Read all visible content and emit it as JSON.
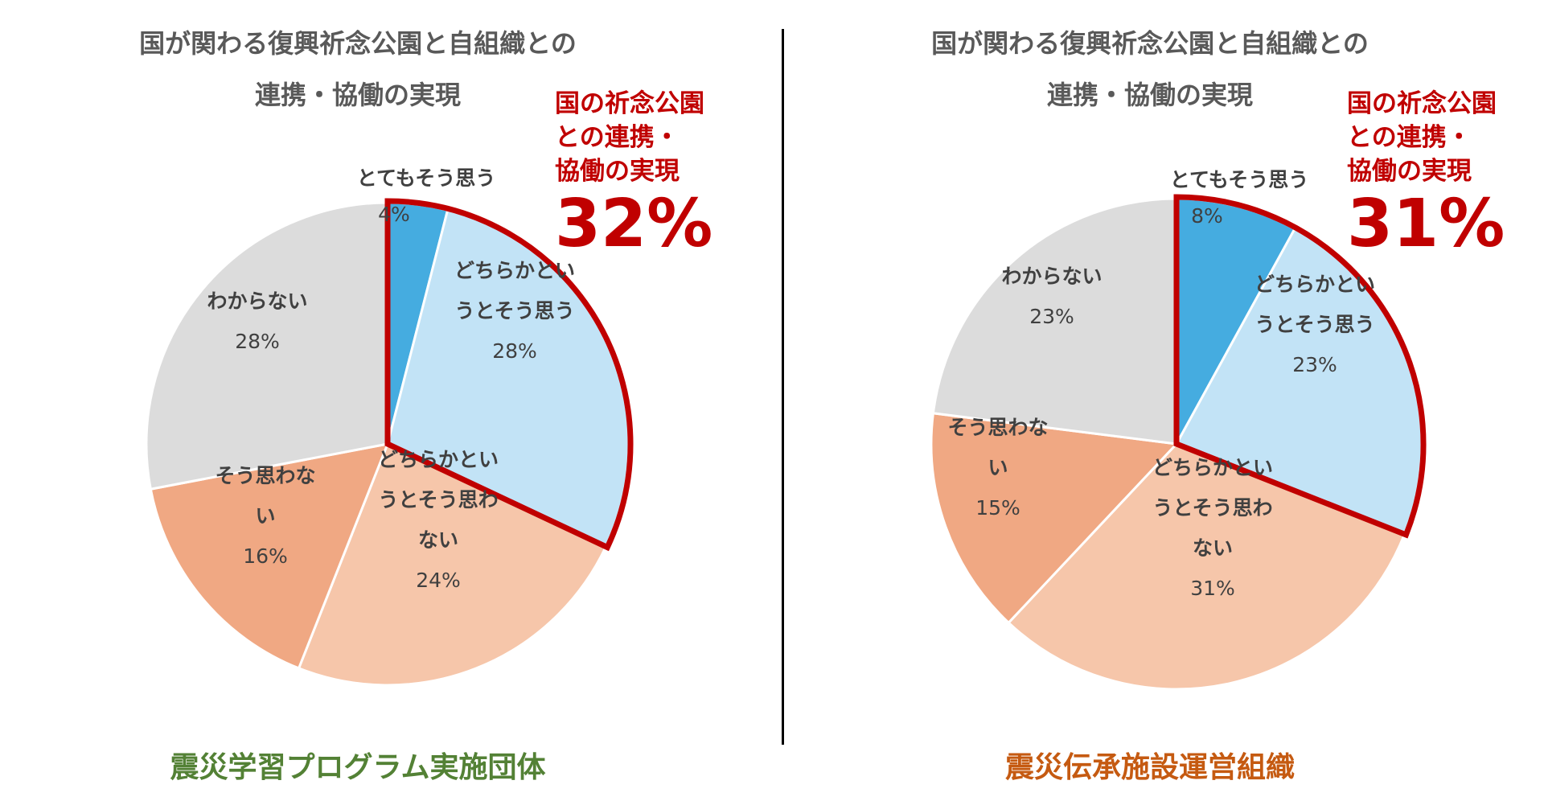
{
  "chart_data": [
    {
      "type": "pie",
      "title_line1": "国が関わる復興祈念公園と自組織との",
      "title_line2": "連携・協働の実現",
      "callout_line1": "国の祈念公園",
      "callout_line2": "との連携・",
      "callout_line3": "協働の実現",
      "callout_value": "32%",
      "footer": "震災学習プログラム実施団体",
      "footer_color": "#538135",
      "slices": [
        {
          "label": "とてもそう思う",
          "value": 4,
          "color": "#45ace0"
        },
        {
          "label": "どちらかというとそう思う",
          "value": 28,
          "color": "#c2e3f6"
        },
        {
          "label": "どちらかというとそう思わない",
          "value": 24,
          "color": "#f6c6aa"
        },
        {
          "label": "そう思わない",
          "value": 16,
          "color": "#f0a883"
        },
        {
          "label": "わからない",
          "value": 28,
          "color": "#dcdcdc"
        }
      ],
      "highlight_color": "#c00000"
    },
    {
      "type": "pie",
      "title_line1": "国が関わる復興祈念公園と自組織との",
      "title_line2": "連携・協働の実現",
      "callout_line1": "国の祈念公園",
      "callout_line2": "との連携・",
      "callout_line3": "協働の実現",
      "callout_value": "31%",
      "footer": "震災伝承施設運営組織",
      "footer_color": "#c55a11",
      "slices": [
        {
          "label": "とてもそう思う",
          "value": 8,
          "color": "#45ace0"
        },
        {
          "label": "どちらかというとそう思う",
          "value": 23,
          "color": "#c2e3f6"
        },
        {
          "label": "どちらかというとそう思わない",
          "value": 31,
          "color": "#f6c6aa"
        },
        {
          "label": "そう思わない",
          "value": 15,
          "color": "#f0a883"
        },
        {
          "label": "わからない",
          "value": 23,
          "color": "#dcdcdc"
        }
      ],
      "highlight_color": "#c00000"
    }
  ]
}
